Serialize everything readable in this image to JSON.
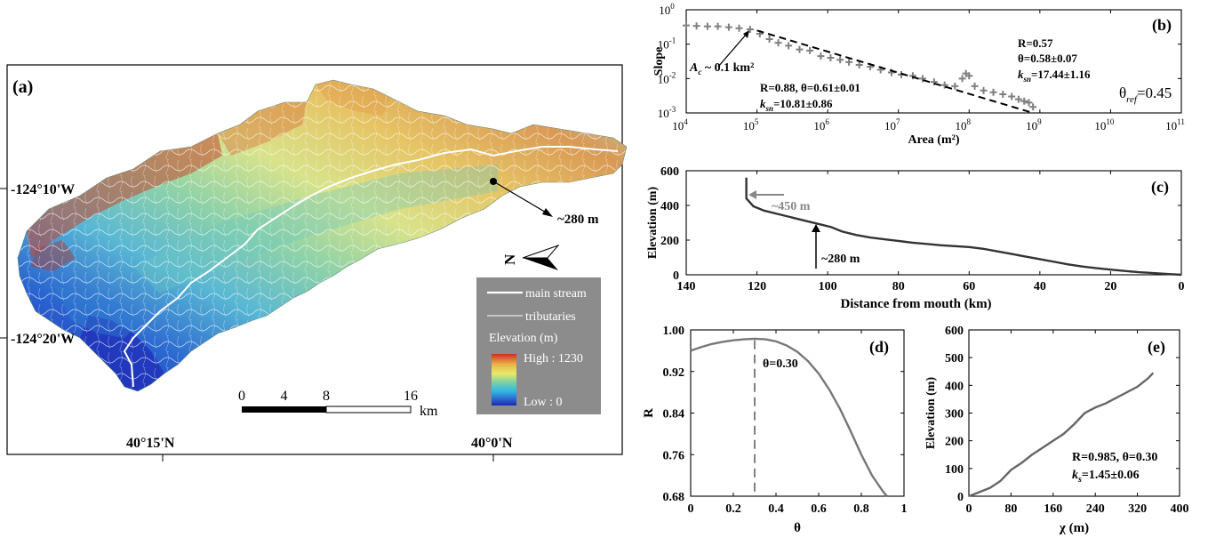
{
  "chart_data": [
    {
      "panel": "(a)",
      "type": "map",
      "lat_labels": [
        "40°15'N",
        "40°0'N"
      ],
      "lon_labels": [
        "124°10'W",
        "124°20'W"
      ],
      "annotation": "~280 m",
      "north_symbol": "N",
      "legend": {
        "main": "main stream",
        "trib": "tributaries",
        "elev_title": "Elevation (m)",
        "high": "High : 1230",
        "low": "Low : 0",
        "colors": [
          "#d22c1f",
          "#e8b34a",
          "#eaea66",
          "#7cd0a4",
          "#32b8e2",
          "#2a66d0",
          "#1f26b6"
        ]
      },
      "scalebar": {
        "ticks": [
          "0",
          "4",
          "8",
          "16"
        ],
        "unit": "km",
        "tick_values": [
          0,
          4,
          8,
          16
        ]
      },
      "colors": {
        "high": "#d22c1f",
        "mid_high": "#e5b64a",
        "mid": "#eaea66",
        "mid_low": "#6cc9c0",
        "low": "#2a66d0",
        "lowest": "#1f26b6"
      }
    },
    {
      "panel": "(b)",
      "type": "scatter",
      "xlabel": "Area (m²)",
      "ylabel": "Slope",
      "xscale": "log",
      "yscale": "log",
      "xlim": [
        10000,
        100000000000
      ],
      "ylim": [
        0.001,
        1
      ],
      "xtick_labels": [
        {
          "base": "10",
          "exp": "4",
          "value": 10000
        },
        {
          "base": "10",
          "exp": "5",
          "value": 100000
        },
        {
          "base": "10",
          "exp": "6",
          "value": 1000000
        },
        {
          "base": "10",
          "exp": "7",
          "value": 10000000
        },
        {
          "base": "10",
          "exp": "8",
          "value": 100000000
        },
        {
          "base": "10",
          "exp": "9",
          "value": 1000000000
        },
        {
          "base": "10",
          "exp": "10",
          "value": 10000000000
        },
        {
          "base": "10",
          "exp": "11",
          "value": 100000000000
        }
      ],
      "ytick_labels": [
        {
          "base": "10",
          "exp": "0",
          "value": 1
        },
        {
          "base": "10",
          "exp": "-1",
          "value": 0.1
        },
        {
          "base": "10",
          "exp": "-2",
          "value": 0.01
        },
        {
          "base": "10",
          "exp": "-3",
          "value": 0.001
        }
      ],
      "series": [
        {
          "points": [
            [
              10000,
              0.35
            ],
            [
              14000,
              0.34
            ],
            [
              20000,
              0.33
            ],
            [
              28000,
              0.33
            ],
            [
              40000,
              0.31
            ],
            [
              56000,
              0.29
            ],
            [
              80000,
              0.27
            ],
            [
              110000,
              0.2
            ],
            [
              150000,
              0.14
            ],
            [
              200000,
              0.11
            ],
            [
              280000,
              0.09
            ],
            [
              400000,
              0.07
            ],
            [
              560000,
              0.065
            ],
            [
              800000,
              0.045
            ],
            [
              1100000,
              0.04
            ],
            [
              1500000,
              0.035
            ],
            [
              2000000,
              0.03
            ],
            [
              2800000,
              0.025
            ],
            [
              4000000,
              0.022
            ],
            [
              5600000,
              0.018
            ],
            [
              8000000,
              0.015
            ],
            [
              11000000,
              0.013
            ],
            [
              16000000,
              0.012
            ],
            [
              22000000,
              0.01
            ],
            [
              32000000,
              0.008
            ],
            [
              45000000,
              0.0065
            ],
            [
              63000000,
              0.006
            ],
            [
              80000000,
              0.01
            ],
            [
              90000000,
              0.014
            ],
            [
              100000000,
              0.012
            ],
            [
              120000000,
              0.006
            ],
            [
              160000000,
              0.0045
            ],
            [
              220000000,
              0.004
            ],
            [
              300000000,
              0.0035
            ],
            [
              400000000,
              0.003
            ],
            [
              500000000,
              0.0025
            ],
            [
              600000000,
              0.0022
            ],
            [
              700000000,
              0.002
            ],
            [
              800000000,
              0.0015
            ]
          ]
        }
      ],
      "fit_line": [
        [
          100000,
          0.25
        ],
        [
          800000000,
          0.001
        ]
      ],
      "annotations": {
        "ac": "A",
        "ac_sub": "c",
        "ac_rest": " ~ 0.1 km²",
        "left_fit_1": "R=0.88, θ=0.61±0.01",
        "left_fit_2_k": "k",
        "left_fit_2_sub": "sn",
        "left_fit_2_rest": "=10.81±0.86",
        "right_r": "R=0.57",
        "right_theta": "θ=0.58±0.07",
        "right_k": "k",
        "right_sub": "sn",
        "right_rest": "=17.44±1.16",
        "theta_ref": "θ",
        "theta_ref_sub": "ref",
        "theta_ref_rest": "=0.45"
      }
    },
    {
      "panel": "(c)",
      "type": "line",
      "xlabel": "Distance from mouth (km)",
      "ylabel": "Elevation (m)",
      "xlim": [
        140,
        0
      ],
      "ylim": [
        0,
        600
      ],
      "xticks": [
        140,
        120,
        100,
        80,
        60,
        40,
        20,
        0
      ],
      "yticks": [
        0,
        200,
        400,
        600
      ],
      "series": [
        {
          "points": [
            [
              123,
              560
            ],
            [
              123,
              440
            ],
            [
              121,
              395
            ],
            [
              118,
              370
            ],
            [
              114,
              350
            ],
            [
              110,
              330
            ],
            [
              105,
              305
            ],
            [
              102,
              290
            ],
            [
              99,
              275
            ],
            [
              96,
              250
            ],
            [
              92,
              230
            ],
            [
              88,
              215
            ],
            [
              84,
              205
            ],
            [
              80,
              195
            ],
            [
              76,
              185
            ],
            [
              72,
              178
            ],
            [
              68,
              170
            ],
            [
              64,
              165
            ],
            [
              60,
              160
            ],
            [
              56,
              150
            ],
            [
              52,
              135
            ],
            [
              48,
              120
            ],
            [
              44,
              105
            ],
            [
              40,
              90
            ],
            [
              36,
              75
            ],
            [
              32,
              60
            ],
            [
              28,
              48
            ],
            [
              24,
              38
            ],
            [
              20,
              30
            ],
            [
              16,
              22
            ],
            [
              12,
              15
            ],
            [
              8,
              10
            ],
            [
              4,
              5
            ],
            [
              0,
              0
            ]
          ]
        }
      ],
      "annotations": {
        "a450": "~450 m",
        "a280": "~280 m"
      }
    },
    {
      "panel": "(d)",
      "type": "line",
      "xlabel": "θ",
      "ylabel": "R",
      "xlim": [
        0,
        1
      ],
      "ylim": [
        0.68,
        1.0
      ],
      "xticks": [
        0,
        0.2,
        0.4,
        0.6,
        0.8,
        1
      ],
      "yticks": [
        0.68,
        0.76,
        0.84,
        0.92,
        1.0
      ],
      "xtick_labels": [
        "0",
        "0.2",
        "0.4",
        "0.6",
        "0.8",
        "1"
      ],
      "ytick_labels": [
        "0.68",
        "0.76",
        "0.84",
        "0.92",
        "1.00"
      ],
      "series": [
        {
          "points": [
            [
              0,
              0.96
            ],
            [
              0.05,
              0.967
            ],
            [
              0.1,
              0.973
            ],
            [
              0.15,
              0.977
            ],
            [
              0.2,
              0.98
            ],
            [
              0.25,
              0.982
            ],
            [
              0.3,
              0.983
            ],
            [
              0.35,
              0.982
            ],
            [
              0.4,
              0.978
            ],
            [
              0.45,
              0.97
            ],
            [
              0.5,
              0.958
            ],
            [
              0.55,
              0.94
            ],
            [
              0.6,
              0.916
            ],
            [
              0.65,
              0.885
            ],
            [
              0.7,
              0.848
            ],
            [
              0.75,
              0.805
            ],
            [
              0.8,
              0.76
            ],
            [
              0.85,
              0.72
            ],
            [
              0.9,
              0.69
            ],
            [
              0.92,
              0.68
            ]
          ]
        }
      ],
      "vline_x": 0.3,
      "annotation": "θ=0.30"
    },
    {
      "panel": "(e)",
      "type": "line",
      "xlabel": "χ (m)",
      "ylabel": "Elevation (m)",
      "xlim": [
        0,
        400
      ],
      "ylim": [
        0,
        600
      ],
      "xticks": [
        0,
        80,
        160,
        240,
        320,
        400
      ],
      "yticks": [
        0,
        100,
        200,
        300,
        400,
        500,
        600
      ],
      "series": [
        {
          "points": [
            [
              0,
              0
            ],
            [
              20,
              15
            ],
            [
              40,
              30
            ],
            [
              60,
              55
            ],
            [
              80,
              95
            ],
            [
              100,
              120
            ],
            [
              120,
              150
            ],
            [
              140,
              175
            ],
            [
              160,
              200
            ],
            [
              180,
              225
            ],
            [
              200,
              260
            ],
            [
              220,
              300
            ],
            [
              240,
              320
            ],
            [
              260,
              335
            ],
            [
              280,
              355
            ],
            [
              300,
              375
            ],
            [
              320,
              395
            ],
            [
              340,
              425
            ],
            [
              350,
              445
            ]
          ]
        }
      ],
      "annotations": {
        "line1": "R=0.985, θ=0.30",
        "k": "k",
        "sub": "s",
        "rest": "=1.45±0.06"
      }
    }
  ]
}
